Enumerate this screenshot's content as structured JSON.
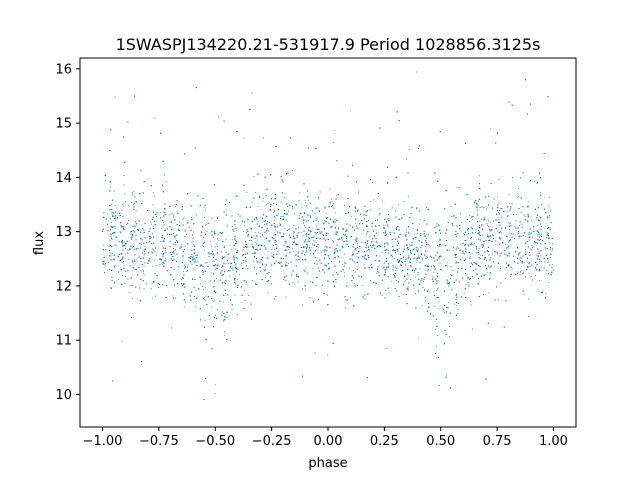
{
  "chart_data": {
    "type": "scatter",
    "title": "1SWASPJ134220.21-531917.9 Period 1028856.3125s",
    "xlabel": "phase",
    "ylabel": "flux",
    "xlim": [
      -1.1,
      1.1
    ],
    "ylim": [
      9.4,
      16.2
    ],
    "xticks": [
      -1.0,
      -0.75,
      -0.5,
      -0.25,
      0.0,
      0.25,
      0.5,
      0.75,
      1.0
    ],
    "xtick_labels": [
      "−1.00",
      "−0.75",
      "−0.50",
      "−0.25",
      "0.00",
      "0.25",
      "0.50",
      "0.75",
      "1.00"
    ],
    "yticks": [
      10,
      11,
      12,
      13,
      14,
      15,
      16
    ],
    "ytick_labels": [
      "10",
      "11",
      "12",
      "13",
      "14",
      "15",
      "16"
    ],
    "grid": false,
    "series_color": "#1f77b4",
    "series": [
      {
        "description_values": "phase-folded light curve, dense band around flux 12.8 with dips near phase ±0.5",
        "x": [
          -1.0,
          -0.98,
          -0.96,
          -0.94,
          -0.92,
          -0.9,
          -0.88,
          -0.86,
          -0.84,
          -0.82,
          -0.8,
          -0.78,
          -0.76,
          -0.74,
          -0.72,
          -0.7,
          -0.68,
          -0.66,
          -0.64,
          -0.62,
          -0.6,
          -0.58,
          -0.56,
          -0.54,
          -0.52,
          -0.5,
          -0.48,
          -0.46,
          -0.44,
          -0.42,
          -0.4,
          -0.38,
          -0.36,
          -0.34,
          -0.32,
          -0.3,
          -0.28,
          -0.26,
          -0.24,
          -0.22,
          -0.2,
          -0.18,
          -0.16,
          -0.14,
          -0.12,
          -0.1,
          -0.08,
          -0.06,
          -0.04,
          -0.02,
          0.0,
          0.02,
          0.04,
          0.06,
          0.08,
          0.1,
          0.12,
          0.14,
          0.16,
          0.18,
          0.2,
          0.22,
          0.24,
          0.26,
          0.28,
          0.3,
          0.32,
          0.34,
          0.36,
          0.38,
          0.4,
          0.42,
          0.44,
          0.46,
          0.48,
          0.5,
          0.52,
          0.54,
          0.56,
          0.58,
          0.6,
          0.62,
          0.64,
          0.66,
          0.68,
          0.7,
          0.72,
          0.74,
          0.76,
          0.78,
          0.8,
          0.82,
          0.84,
          0.86,
          0.88,
          0.9,
          0.92,
          0.94,
          0.96,
          0.98,
          1.0
        ],
        "y_center": [
          12.8,
          12.85,
          12.9,
          12.85,
          12.8,
          12.8,
          12.75,
          12.8,
          12.8,
          12.75,
          12.8,
          12.8,
          12.75,
          12.7,
          12.75,
          12.8,
          12.75,
          12.7,
          12.65,
          12.6,
          12.55,
          12.5,
          12.4,
          12.3,
          12.35,
          12.45,
          12.35,
          12.3,
          12.45,
          12.55,
          12.6,
          12.65,
          12.7,
          12.75,
          12.8,
          12.8,
          12.85,
          12.8,
          12.85,
          12.8,
          12.85,
          12.8,
          12.8,
          12.75,
          12.8,
          12.8,
          12.75,
          12.8,
          12.8,
          12.8,
          12.85,
          12.8,
          12.85,
          12.8,
          12.8,
          12.75,
          12.8,
          12.8,
          12.75,
          12.8,
          12.75,
          12.7,
          12.75,
          12.7,
          12.7,
          12.65,
          12.65,
          12.6,
          12.6,
          12.55,
          12.5,
          12.45,
          12.35,
          12.3,
          12.4,
          12.45,
          12.35,
          12.3,
          12.45,
          12.55,
          12.6,
          12.65,
          12.7,
          12.75,
          12.8,
          12.8,
          12.8,
          12.85,
          12.8,
          12.85,
          12.9,
          12.85,
          12.8,
          12.8,
          12.85,
          12.8,
          12.8,
          12.85,
          12.85,
          12.8,
          12.8
        ]
      }
    ]
  }
}
